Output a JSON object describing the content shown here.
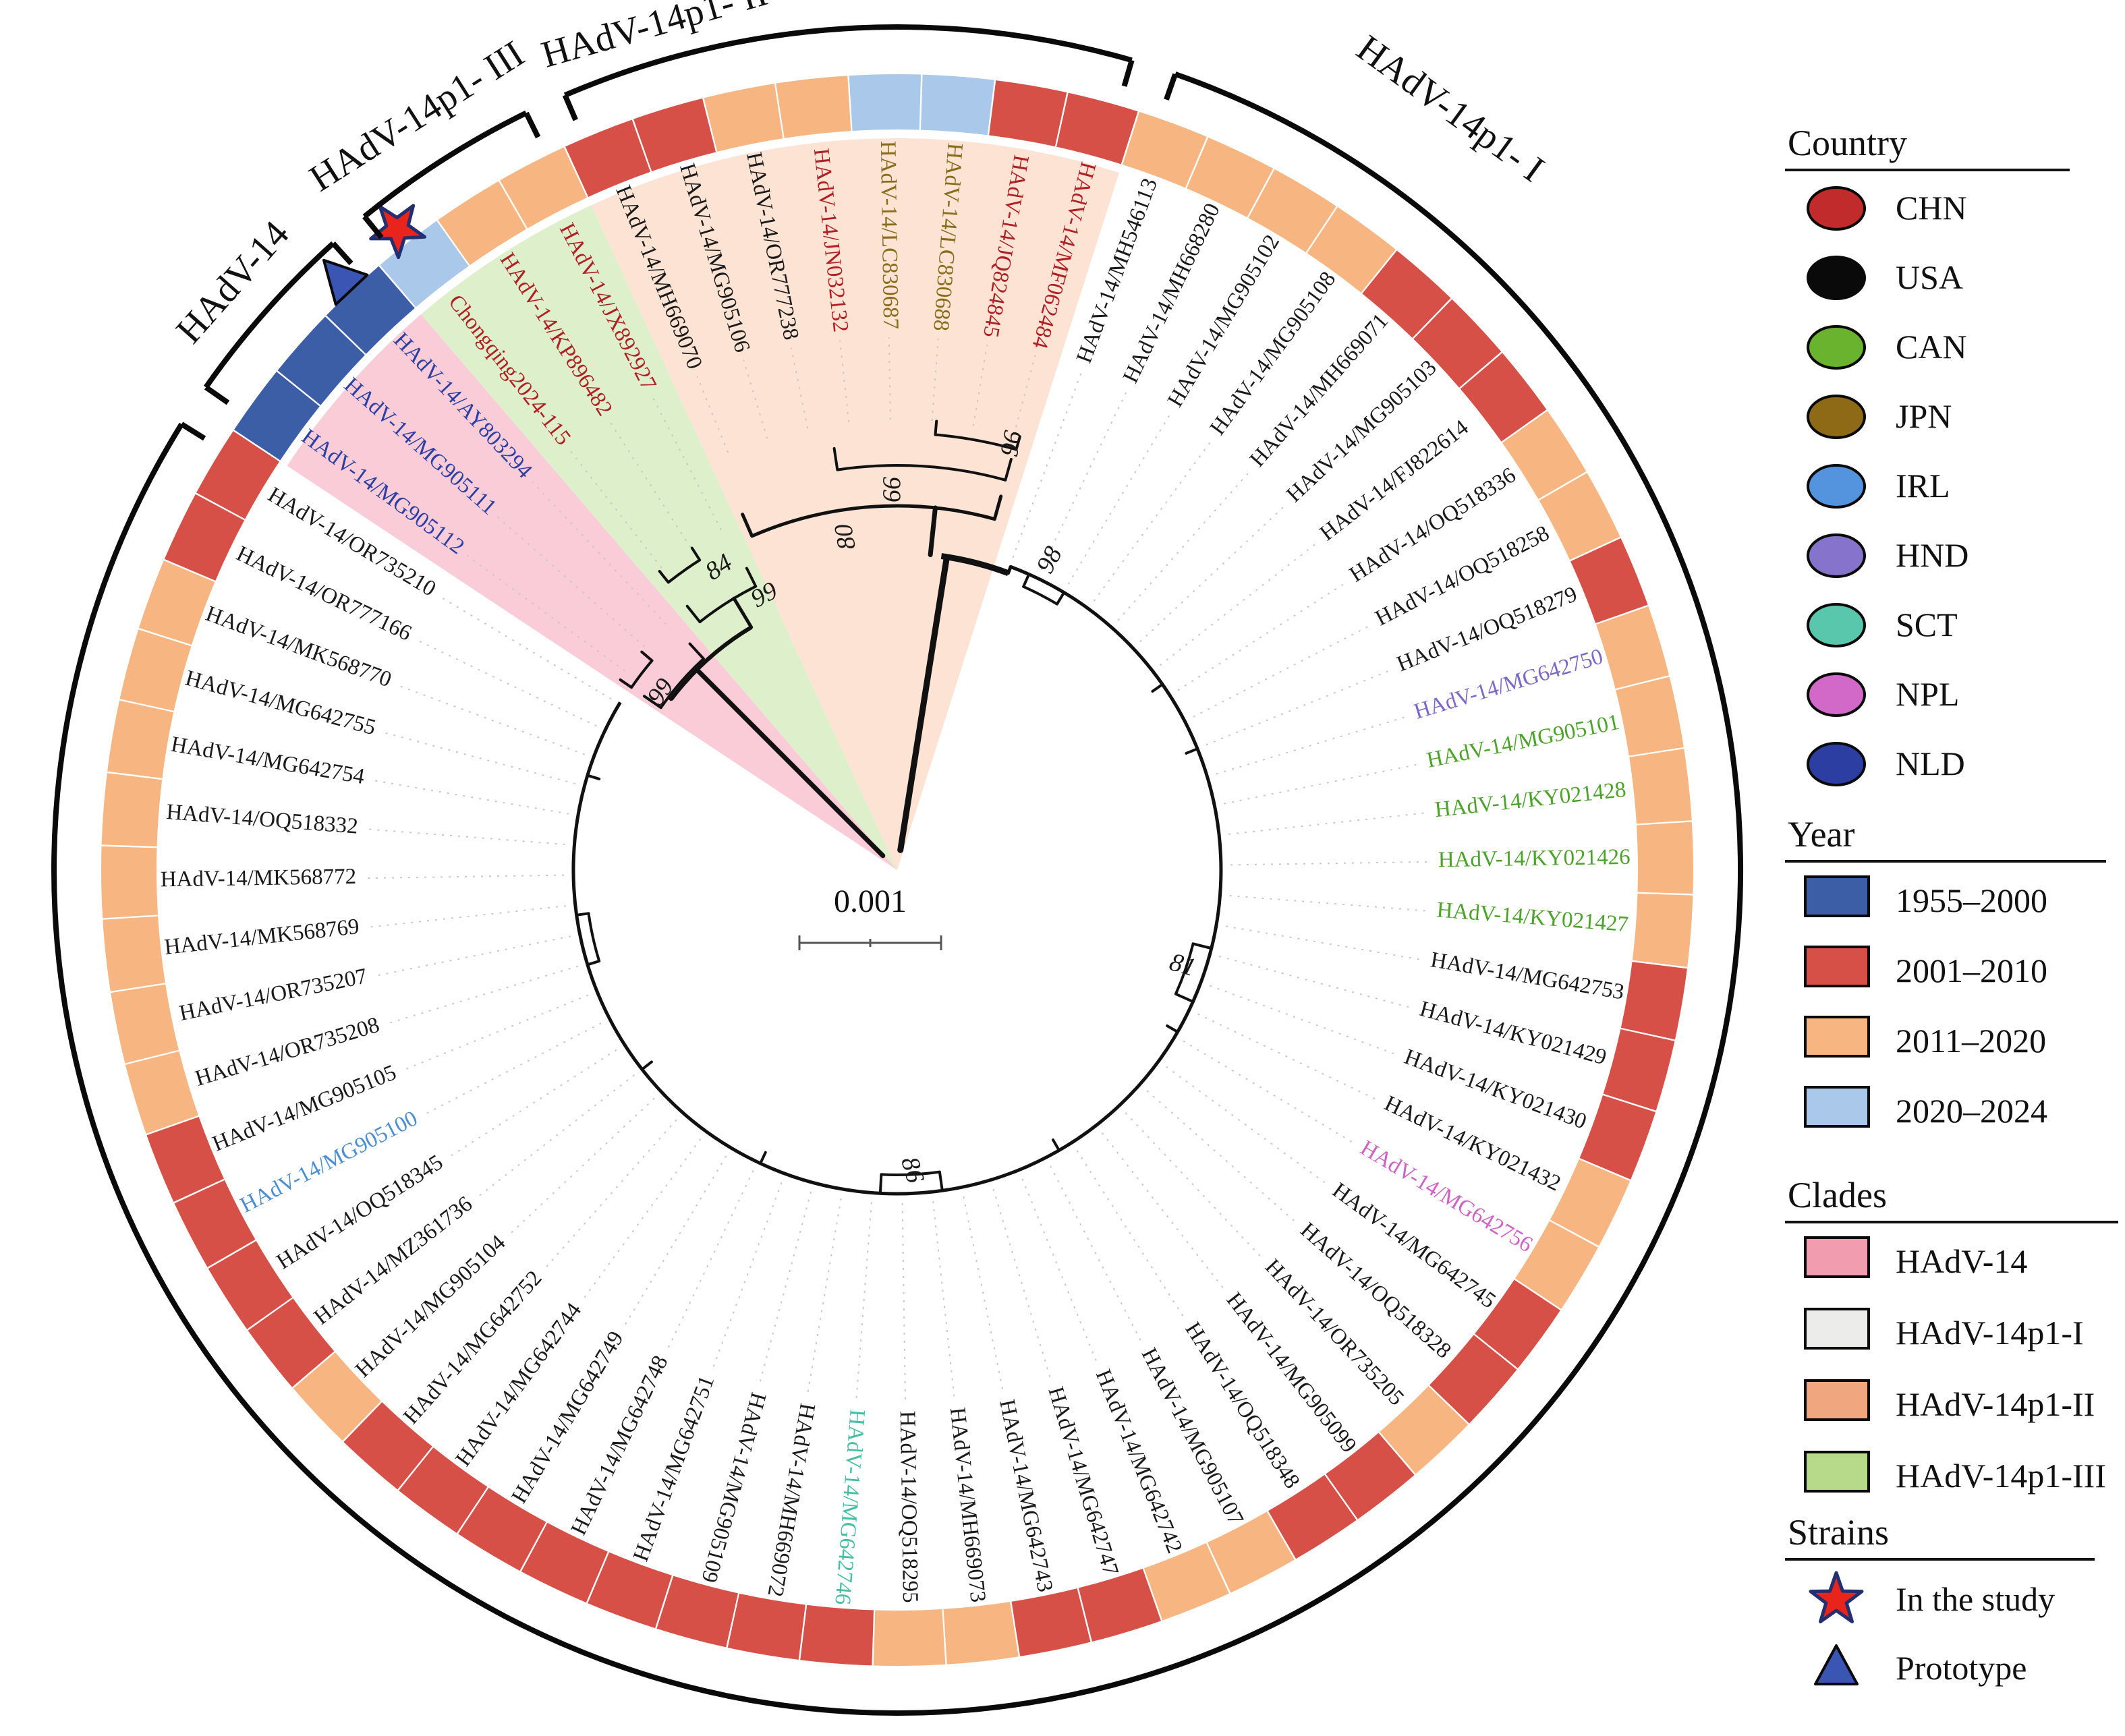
{
  "figure_type": "circular phylogenetic tree (HAdV-14 whole-genome tree)",
  "scale_bar": {
    "label": "0.001"
  },
  "chart_data": {
    "type": "phylogenetic_tree",
    "layout": "circular_fan",
    "scale_bar": "0.001",
    "clade_arc_labels": [
      {
        "text": "HAdV-14p1- I",
        "clade": "HAdV-14p1-I"
      },
      {
        "text": "HAdV-14p1- II",
        "clade": "HAdV-14p1-II"
      },
      {
        "text": "HAdV-14p1- III",
        "clade": "HAdV-14p1-III"
      },
      {
        "text": "HAdV-14",
        "clade": "HAdV-14"
      }
    ],
    "bootstrap_values": [
      {
        "value": "98",
        "theta": 26.5,
        "r": 512,
        "rot": -62
      },
      {
        "value": "81",
        "theta": 108.8,
        "r": 446,
        "rot": 16
      },
      {
        "value": "86",
        "theta": 177.5,
        "r": 446,
        "rot": 74
      },
      {
        "value": "99",
        "theta": 307.0,
        "r": 436,
        "rot": -55
      },
      {
        "value": "84",
        "theta": 329.5,
        "r": 518,
        "rot": -33
      },
      {
        "value": "99",
        "theta": 334.2,
        "r": 450,
        "rot": -28
      },
      {
        "value": "80",
        "theta": 351.5,
        "r": 500,
        "rot": -100
      },
      {
        "value": "99",
        "theta": 358.8,
        "r": 565,
        "rot": 90
      },
      {
        "value": "96",
        "theta": 14.6,
        "r": 655,
        "rot": 100
      }
    ],
    "taxa": [
      {
        "label": "HAdV-14/MH546113",
        "country": "USA",
        "year": "2011–2020",
        "clade": "HAdV-14p1-I",
        "marker": null
      },
      {
        "label": "HAdV-14/MH668280",
        "country": "USA",
        "year": "2011–2020",
        "clade": "HAdV-14p1-I",
        "marker": null
      },
      {
        "label": "HAdV-14/MG905102",
        "country": "USA",
        "year": "2011–2020",
        "clade": "HAdV-14p1-I",
        "marker": null
      },
      {
        "label": "HAdV-14/MG905108",
        "country": "USA",
        "year": "2011–2020",
        "clade": "HAdV-14p1-I",
        "marker": null
      },
      {
        "label": "HAdV-14/MH669071",
        "country": "USA",
        "year": "2001–2010",
        "clade": "HAdV-14p1-I",
        "marker": null
      },
      {
        "label": "HAdV-14/MG905103",
        "country": "USA",
        "year": "2001–2010",
        "clade": "HAdV-14p1-I",
        "marker": null
      },
      {
        "label": "HAdV-14/FJ822614",
        "country": "USA",
        "year": "2001–2010",
        "clade": "HAdV-14p1-I",
        "marker": null
      },
      {
        "label": "HAdV-14/OQ518336",
        "country": "USA",
        "year": "2011–2020",
        "clade": "HAdV-14p1-I",
        "marker": null
      },
      {
        "label": "HAdV-14/OQ518258",
        "country": "USA",
        "year": "2011–2020",
        "clade": "HAdV-14p1-I",
        "marker": null
      },
      {
        "label": "HAdV-14/OQ518279",
        "country": "USA",
        "year": "2001–2010",
        "clade": "HAdV-14p1-I",
        "marker": null
      },
      {
        "label": "HAdV-14/MG642750",
        "country": "HND",
        "year": "2011–2020",
        "clade": "HAdV-14p1-I",
        "marker": null
      },
      {
        "label": "HAdV-14/MG905101",
        "country": "CAN",
        "year": "2011–2020",
        "clade": "HAdV-14p1-I",
        "marker": null
      },
      {
        "label": "HAdV-14/KY021428",
        "country": "CAN",
        "year": "2011–2020",
        "clade": "HAdV-14p1-I",
        "marker": null
      },
      {
        "label": "HAdV-14/KY021426",
        "country": "CAN",
        "year": "2011–2020",
        "clade": "HAdV-14p1-I",
        "marker": null
      },
      {
        "label": "HAdV-14/KY021427",
        "country": "CAN",
        "year": "2011–2020",
        "clade": "HAdV-14p1-I",
        "marker": null
      },
      {
        "label": "HAdV-14/MG642753",
        "country": "USA",
        "year": "2001–2010",
        "clade": "HAdV-14p1-I",
        "marker": null
      },
      {
        "label": "HAdV-14/KY021429",
        "country": "USA",
        "year": "2001–2010",
        "clade": "HAdV-14p1-I",
        "marker": null
      },
      {
        "label": "HAdV-14/KY021430",
        "country": "USA",
        "year": "2001–2010",
        "clade": "HAdV-14p1-I",
        "marker": null
      },
      {
        "label": "HAdV-14/KY021432",
        "country": "USA",
        "year": "2011–2020",
        "clade": "HAdV-14p1-I",
        "marker": null
      },
      {
        "label": "HAdV-14/MG642756",
        "country": "NPL",
        "year": "2011–2020",
        "clade": "HAdV-14p1-I",
        "marker": null
      },
      {
        "label": "HAdV-14/MG642745",
        "country": "USA",
        "year": "2001–2010",
        "clade": "HAdV-14p1-I",
        "marker": null
      },
      {
        "label": "HAdV-14/OQ518328",
        "country": "USA",
        "year": "2001–2010",
        "clade": "HAdV-14p1-I",
        "marker": null
      },
      {
        "label": "HAdV-14/OR735205",
        "country": "USA",
        "year": "2011–2020",
        "clade": "HAdV-14p1-I",
        "marker": null
      },
      {
        "label": "HAdV-14/MG905099",
        "country": "USA",
        "year": "2001–2010",
        "clade": "HAdV-14p1-I",
        "marker": null
      },
      {
        "label": "HAdV-14/OQ518348",
        "country": "USA",
        "year": "2001–2010",
        "clade": "HAdV-14p1-I",
        "marker": null
      },
      {
        "label": "HAdV-14/MG905107",
        "country": "USA",
        "year": "2011–2020",
        "clade": "HAdV-14p1-I",
        "marker": null
      },
      {
        "label": "HAdV-14/MG642742",
        "country": "USA",
        "year": "2011–2020",
        "clade": "HAdV-14p1-I",
        "marker": null
      },
      {
        "label": "HAdV-14/MG642747",
        "country": "USA",
        "year": "2001–2010",
        "clade": "HAdV-14p1-I",
        "marker": null
      },
      {
        "label": "HAdV-14/MG642743",
        "country": "USA",
        "year": "2001–2010",
        "clade": "HAdV-14p1-I",
        "marker": null
      },
      {
        "label": "HAdV-14/MH669073",
        "country": "USA",
        "year": "2011–2020",
        "clade": "HAdV-14p1-I",
        "marker": null
      },
      {
        "label": "HAdV-14/OQ518295",
        "country": "USA",
        "year": "2011–2020",
        "clade": "HAdV-14p1-I",
        "marker": null
      },
      {
        "label": "HAdV-14/MG642746",
        "country": "SCT",
        "year": "2001–2010",
        "clade": "HAdV-14p1-I",
        "marker": null
      },
      {
        "label": "HAdV-14/MH669072",
        "country": "USA",
        "year": "2001–2010",
        "clade": "HAdV-14p1-I",
        "marker": null
      },
      {
        "label": "HAdV-14/MG905109",
        "country": "USA",
        "year": "2001–2010",
        "clade": "HAdV-14p1-I",
        "marker": null
      },
      {
        "label": "HAdV-14/MG642751",
        "country": "USA",
        "year": "2001–2010",
        "clade": "HAdV-14p1-I",
        "marker": null
      },
      {
        "label": "HAdV-14/MG642748",
        "country": "USA",
        "year": "2001–2010",
        "clade": "HAdV-14p1-I",
        "marker": null
      },
      {
        "label": "HAdV-14/MG642749",
        "country": "USA",
        "year": "2001–2010",
        "clade": "HAdV-14p1-I",
        "marker": null
      },
      {
        "label": "HAdV-14/MG642744",
        "country": "USA",
        "year": "2001–2010",
        "clade": "HAdV-14p1-I",
        "marker": null
      },
      {
        "label": "HAdV-14/MG642752",
        "country": "USA",
        "year": "2001–2010",
        "clade": "HAdV-14p1-I",
        "marker": null
      },
      {
        "label": "HAdV-14/MG905104",
        "country": "USA",
        "year": "2011–2020",
        "clade": "HAdV-14p1-I",
        "marker": null
      },
      {
        "label": "HAdV-14/MZ361736",
        "country": "USA",
        "year": "2001–2010",
        "clade": "HAdV-14p1-I",
        "marker": null
      },
      {
        "label": "HAdV-14/OQ518345",
        "country": "USA",
        "year": "2001–2010",
        "clade": "HAdV-14p1-I",
        "marker": null
      },
      {
        "label": "HAdV-14/MG905100",
        "country": "IRL",
        "year": "2001–2010",
        "clade": "HAdV-14p1-I",
        "marker": null
      },
      {
        "label": "HAdV-14/MG905105",
        "country": "USA",
        "year": "2001–2010",
        "clade": "HAdV-14p1-I",
        "marker": null
      },
      {
        "label": "HAdV-14/OR735208",
        "country": "USA",
        "year": "2011–2020",
        "clade": "HAdV-14p1-I",
        "marker": null
      },
      {
        "label": "HAdV-14/OR735207",
        "country": "USA",
        "year": "2011–2020",
        "clade": "HAdV-14p1-I",
        "marker": null
      },
      {
        "label": "HAdV-14/MK568769",
        "country": "USA",
        "year": "2011–2020",
        "clade": "HAdV-14p1-I",
        "marker": null
      },
      {
        "label": "HAdV-14/MK568772",
        "country": "USA",
        "year": "2011–2020",
        "clade": "HAdV-14p1-I",
        "marker": null
      },
      {
        "label": "HAdV-14/OQ518332",
        "country": "USA",
        "year": "2011–2020",
        "clade": "HAdV-14p1-I",
        "marker": null
      },
      {
        "label": "HAdV-14/MG642754",
        "country": "USA",
        "year": "2011–2020",
        "clade": "HAdV-14p1-I",
        "marker": null
      },
      {
        "label": "HAdV-14/MG642755",
        "country": "USA",
        "year": "2011–2020",
        "clade": "HAdV-14p1-I",
        "marker": null
      },
      {
        "label": "HAdV-14/MK568770",
        "country": "USA",
        "year": "2011–2020",
        "clade": "HAdV-14p1-I",
        "marker": null
      },
      {
        "label": "HAdV-14/OR777166",
        "country": "USA",
        "year": "2001–2010",
        "clade": "HAdV-14p1-I",
        "marker": null
      },
      {
        "label": "HAdV-14/OR735210",
        "country": "USA",
        "year": "2001–2010",
        "clade": "HAdV-14p1-I",
        "marker": null
      },
      {
        "label": "HAdV-14/MG905112",
        "country": "NLD",
        "year": "1955–2000",
        "clade": "HAdV-14",
        "marker": null
      },
      {
        "label": "HAdV-14/MG905111",
        "country": "NLD",
        "year": "1955–2000",
        "clade": "HAdV-14",
        "marker": null
      },
      {
        "label": "HAdV-14/AY803294",
        "country": "NLD",
        "year": "1955–2000",
        "clade": "HAdV-14",
        "marker": "triangle"
      },
      {
        "label": "Chongqing2024-115",
        "country": "CHN",
        "year": "2020–2024",
        "clade": "HAdV-14p1-III",
        "marker": "star"
      },
      {
        "label": "HAdV-14/KP896482",
        "country": "CHN",
        "year": "2011–2020",
        "clade": "HAdV-14p1-III",
        "marker": null
      },
      {
        "label": "HAdV-14/JX892927",
        "country": "CHN",
        "year": "2011–2020",
        "clade": "HAdV-14p1-III",
        "marker": null
      },
      {
        "label": "HAdV-14/MH669070",
        "country": "USA",
        "year": "2001–2010",
        "clade": "HAdV-14p1-II",
        "marker": null
      },
      {
        "label": "HAdV-14/MG905106",
        "country": "USA",
        "year": "2001–2010",
        "clade": "HAdV-14p1-II",
        "marker": null
      },
      {
        "label": "HAdV-14/OR777238",
        "country": "USA",
        "year": "2011–2020",
        "clade": "HAdV-14p1-II",
        "marker": null
      },
      {
        "label": "HAdV-14/JN032132",
        "country": "CHN",
        "year": "2011–2020",
        "clade": "HAdV-14p1-II",
        "marker": null
      },
      {
        "label": "HAdV-14/LC830687",
        "country": "JPN",
        "year": "2020–2024",
        "clade": "HAdV-14p1-II",
        "marker": null
      },
      {
        "label": "HAdV-14/LC830688",
        "country": "JPN",
        "year": "2020–2024",
        "clade": "HAdV-14p1-II",
        "marker": null
      },
      {
        "label": "HAdV-14/JQ824845",
        "country": "CHN",
        "year": "2001–2010",
        "clade": "HAdV-14p1-II",
        "marker": null
      },
      {
        "label": "HAdV-14/MF062484",
        "country": "CHN",
        "year": "2001–2010",
        "clade": "HAdV-14p1-II",
        "marker": null
      }
    ]
  },
  "legend": {
    "country": {
      "title": "Country",
      "items": [
        {
          "label": "CHN",
          "color": "#c12b2b"
        },
        {
          "label": "USA",
          "color": "#0a0a0a"
        },
        {
          "label": "CAN",
          "color": "#6ab32e"
        },
        {
          "label": "JPN",
          "color": "#8f6a16"
        },
        {
          "label": "IRL",
          "color": "#5493dd"
        },
        {
          "label": "HND",
          "color": "#8573cc"
        },
        {
          "label": "SCT",
          "color": "#58c7ac"
        },
        {
          "label": "NPL",
          "color": "#d269c8"
        },
        {
          "label": "NLD",
          "color": "#2d3ea3"
        }
      ]
    },
    "year": {
      "title": "Year",
      "items": [
        {
          "label": "1955–2000",
          "color": "#3c5ea7"
        },
        {
          "label": "2001–2010",
          "color": "#d75048"
        },
        {
          "label": "2011–2020",
          "color": "#f7b581"
        },
        {
          "label": "2020–2024",
          "color": "#a9c8ea"
        }
      ]
    },
    "clades": {
      "title": "Clades",
      "items": [
        {
          "label": "HAdV-14",
          "color": "#f29daf"
        },
        {
          "label": "HAdV-14p1-I",
          "color": "#ececea"
        },
        {
          "label": "HAdV-14p1-II",
          "color": "#f0a67e"
        },
        {
          "label": "HAdV-14p1-III",
          "color": "#b6da8a"
        }
      ]
    },
    "strains": {
      "title": "Strains",
      "items": [
        {
          "label": "In the study",
          "marker": "star"
        },
        {
          "label": "Prototype",
          "marker": "triangle"
        }
      ]
    }
  },
  "style_colors": {
    "tip_label_by_country": {
      "CHN": "#b01f24",
      "USA": "#1a1a1a",
      "CAN": "#4ca32a",
      "JPN": "#8a6d1a",
      "IRL": "#4a8fd3",
      "HND": "#7b68c8",
      "SCT": "#45bfa5",
      "NPL": "#cf62c3",
      "NLD": "#2c3fa3"
    },
    "ring_by_year": {
      "1955–2000": "#3c5ea7",
      "2001–2010": "#d75048",
      "2011–2020": "#f7b581",
      "2020–2024": "#a9c8ea"
    },
    "wedge_by_clade": {
      "HAdV-14": "#f9ccd7",
      "HAdV-14p1-I": "#ffffff",
      "HAdV-14p1-II": "#fce3d3",
      "HAdV-14p1-III": "#def0cb"
    },
    "star_fill": "#e8241d",
    "star_stroke": "#23306f",
    "triangle_fill": "#3a55b4",
    "triangle_stroke": "#0a0a0a"
  }
}
